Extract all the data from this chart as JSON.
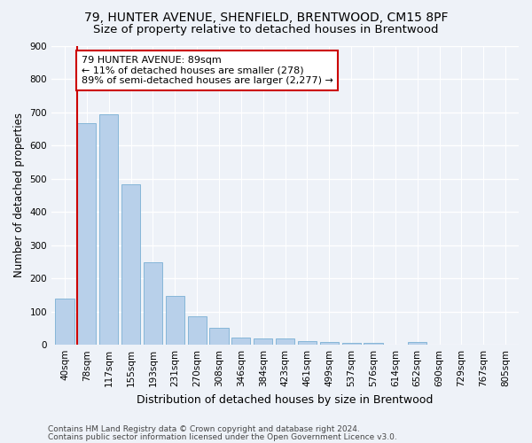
{
  "title1": "79, HUNTER AVENUE, SHENFIELD, BRENTWOOD, CM15 8PF",
  "title2": "Size of property relative to detached houses in Brentwood",
  "xlabel": "Distribution of detached houses by size in Brentwood",
  "ylabel": "Number of detached properties",
  "categories": [
    "40sqm",
    "78sqm",
    "117sqm",
    "155sqm",
    "193sqm",
    "231sqm",
    "270sqm",
    "308sqm",
    "346sqm",
    "384sqm",
    "423sqm",
    "461sqm",
    "499sqm",
    "537sqm",
    "576sqm",
    "614sqm",
    "652sqm",
    "690sqm",
    "729sqm",
    "767sqm",
    "805sqm"
  ],
  "values": [
    138,
    667,
    693,
    482,
    248,
    148,
    85,
    50,
    23,
    18,
    18,
    10,
    8,
    5,
    5,
    0,
    8,
    0,
    0,
    0,
    0
  ],
  "bar_color": "#b8d0ea",
  "bar_edge_color": "#7aafd4",
  "annotation_box_text": "79 HUNTER AVENUE: 89sqm\n← 11% of detached houses are smaller (278)\n89% of semi-detached houses are larger (2,277) →",
  "annotation_box_color": "white",
  "annotation_box_edge_color": "#cc0000",
  "ylim": [
    0,
    900
  ],
  "yticks": [
    0,
    100,
    200,
    300,
    400,
    500,
    600,
    700,
    800,
    900
  ],
  "footer1": "Contains HM Land Registry data © Crown copyright and database right 2024.",
  "footer2": "Contains public sector information licensed under the Open Government Licence v3.0.",
  "background_color": "#eef2f8",
  "plot_bg_color": "#eef2f8",
  "grid_color": "white",
  "title1_fontsize": 10,
  "title2_fontsize": 9.5,
  "xlabel_fontsize": 9,
  "ylabel_fontsize": 8.5,
  "tick_fontsize": 7.5,
  "annotation_fontsize": 8,
  "footer_fontsize": 6.5
}
